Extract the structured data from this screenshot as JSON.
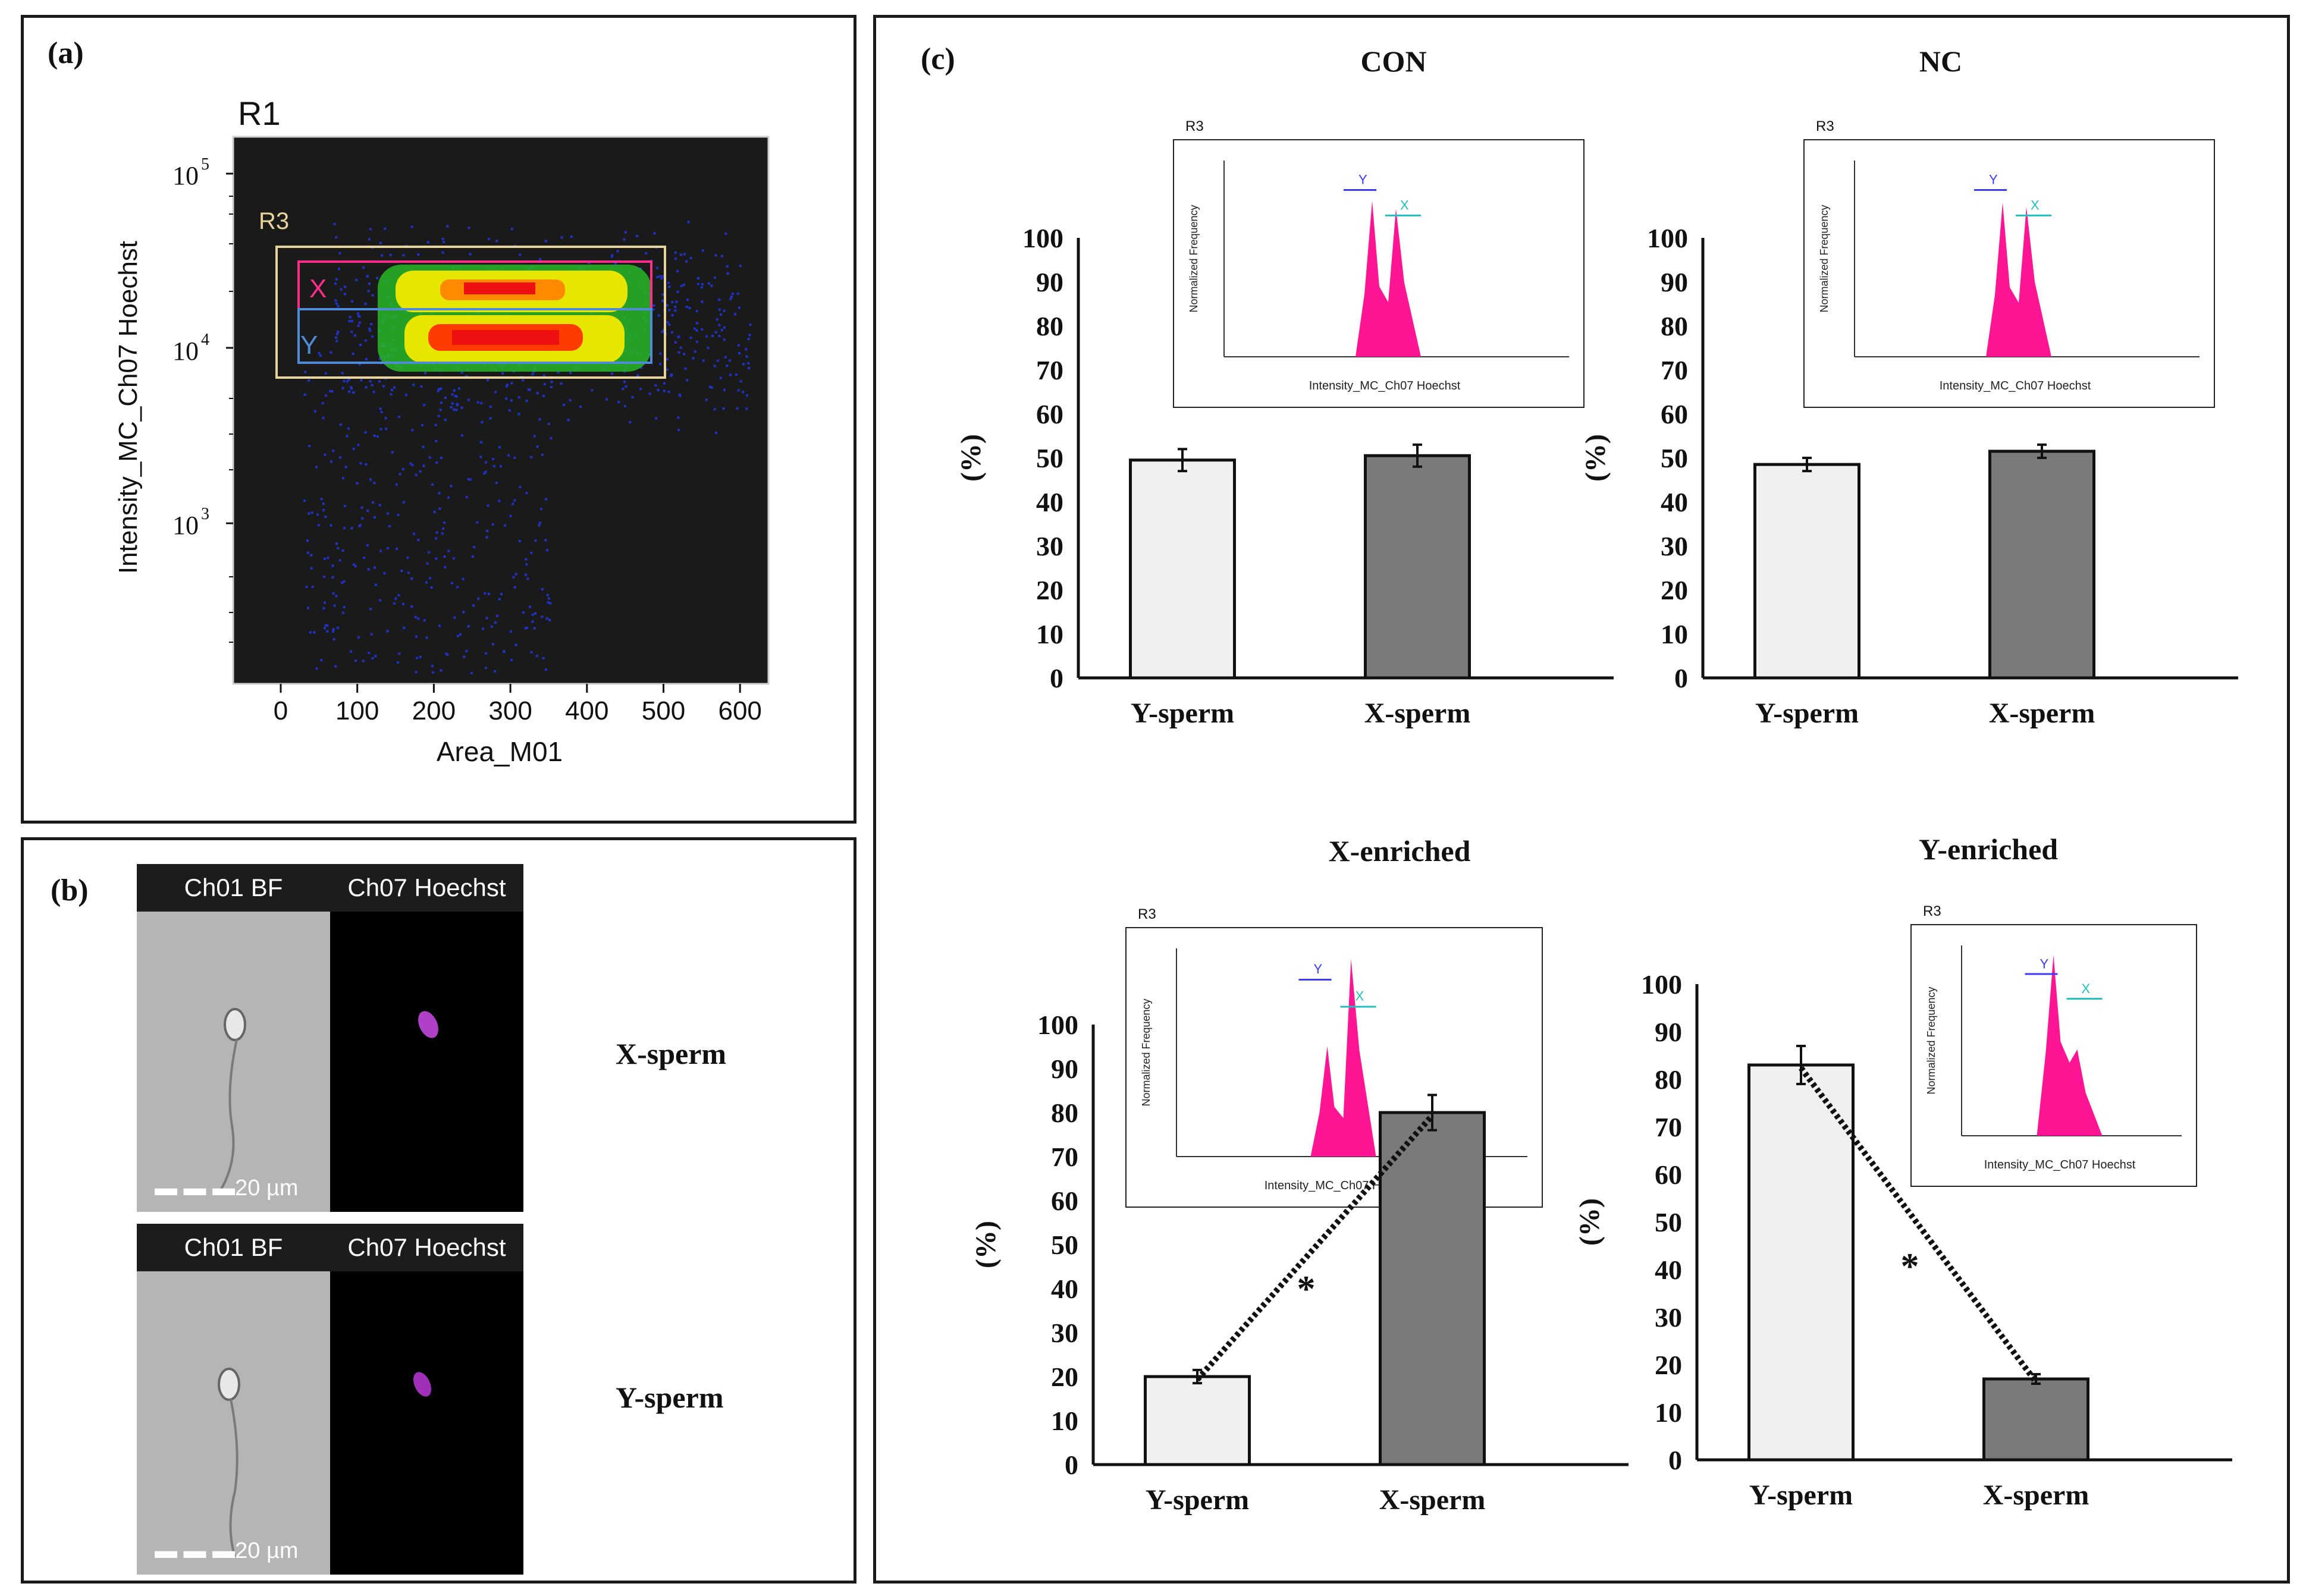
{
  "panels": {
    "a_label": "(a)",
    "b_label": "(b)",
    "c_label": "(c)"
  },
  "scatter": {
    "title": "R1",
    "xlabel": "Area_M01",
    "ylabel": "Intensity_MC_Ch07 Hoechst",
    "xticks": [
      "0",
      "100",
      "200",
      "300",
      "400",
      "500",
      "600"
    ],
    "gate_outer": "R3",
    "gate_x": "X",
    "gate_y": "Y",
    "ytick_5": "5",
    "ytick_4": "4",
    "ytick_3": "3",
    "ytick_base": "10"
  },
  "micrographs": [
    {
      "ch1": "Ch01 BF",
      "ch2": "Ch07 Hoechst",
      "scale": "20 µm",
      "label": "X-sperm"
    },
    {
      "ch1": "Ch01 BF",
      "ch2": "Ch07 Hoechst",
      "scale": "20 µm",
      "label": "Y-sperm"
    }
  ],
  "inset": {
    "gate": "R3",
    "xlabel": "Intensity_MC_Ch07 Hoechst",
    "ylabel": "Normalized Frequency",
    "peak_y": "Y",
    "peak_x": "X"
  },
  "colors": {
    "bar_y": "#f0f0f0",
    "bar_x": "#7a7a7a",
    "histogram": "#ff1493",
    "scatter_bg": "#1a1a1a"
  },
  "chart_data": [
    {
      "type": "bar",
      "title": "CON",
      "categories": [
        "Y-sperm",
        "X-sperm"
      ],
      "values": [
        49.5,
        50.5
      ],
      "errors": [
        2.5,
        2.5
      ],
      "ylabel": "(%)",
      "ylim": [
        0,
        100
      ],
      "yticks": [
        "0",
        "10",
        "20",
        "30",
        "40",
        "50",
        "60",
        "70",
        "80",
        "90",
        "100"
      ],
      "trend": false,
      "significance": ""
    },
    {
      "type": "bar",
      "title": "NC",
      "categories": [
        "Y-sperm",
        "X-sperm"
      ],
      "values": [
        48.5,
        51.5
      ],
      "errors": [
        1.5,
        1.5
      ],
      "ylabel": "(%)",
      "ylim": [
        0,
        100
      ],
      "yticks": [
        "0",
        "10",
        "20",
        "30",
        "40",
        "50",
        "60",
        "70",
        "80",
        "90",
        "100"
      ],
      "trend": false,
      "significance": ""
    },
    {
      "type": "bar",
      "title": "X-enriched",
      "categories": [
        "Y-sperm",
        "X-sperm"
      ],
      "values": [
        20,
        80
      ],
      "errors": [
        1.5,
        4
      ],
      "ylabel": "(%)",
      "ylim": [
        0,
        100
      ],
      "yticks": [
        "0",
        "10",
        "20",
        "30",
        "40",
        "50",
        "60",
        "70",
        "80",
        "90",
        "100"
      ],
      "trend": true,
      "significance": "*"
    },
    {
      "type": "bar",
      "title": "Y-enriched",
      "categories": [
        "Y-sperm",
        "X-sperm"
      ],
      "values": [
        83,
        17
      ],
      "errors": [
        4,
        1
      ],
      "ylabel": "(%)",
      "ylim": [
        0,
        100
      ],
      "yticks": [
        "0",
        "10",
        "20",
        "30",
        "40",
        "50",
        "60",
        "70",
        "80",
        "90",
        "100"
      ],
      "trend": true,
      "significance": "*"
    }
  ]
}
